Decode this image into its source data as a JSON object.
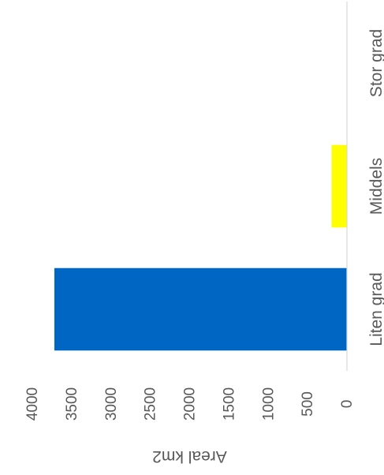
{
  "chart_data": {
    "type": "bar",
    "orientation": "horizontal-bars (figure rotated 90° clockwise)",
    "categories": [
      "Liten grad",
      "Middels",
      "Stor grad"
    ],
    "values": [
      3720,
      195,
      0
    ],
    "colors": [
      "#0066c4",
      "#ffff00",
      "#a5a5a5"
    ],
    "xlabel": "",
    "ylabel": "Areal km2",
    "ylim": [
      0,
      4000
    ],
    "ticks": [
      0,
      500,
      1000,
      1500,
      2000,
      2500,
      3000,
      3500,
      4000
    ],
    "tick_labels": [
      "0",
      "500",
      "1000",
      "1500",
      "2000",
      "2500",
      "3000",
      "3500",
      "4000"
    ],
    "grid": false,
    "legend": "none"
  }
}
